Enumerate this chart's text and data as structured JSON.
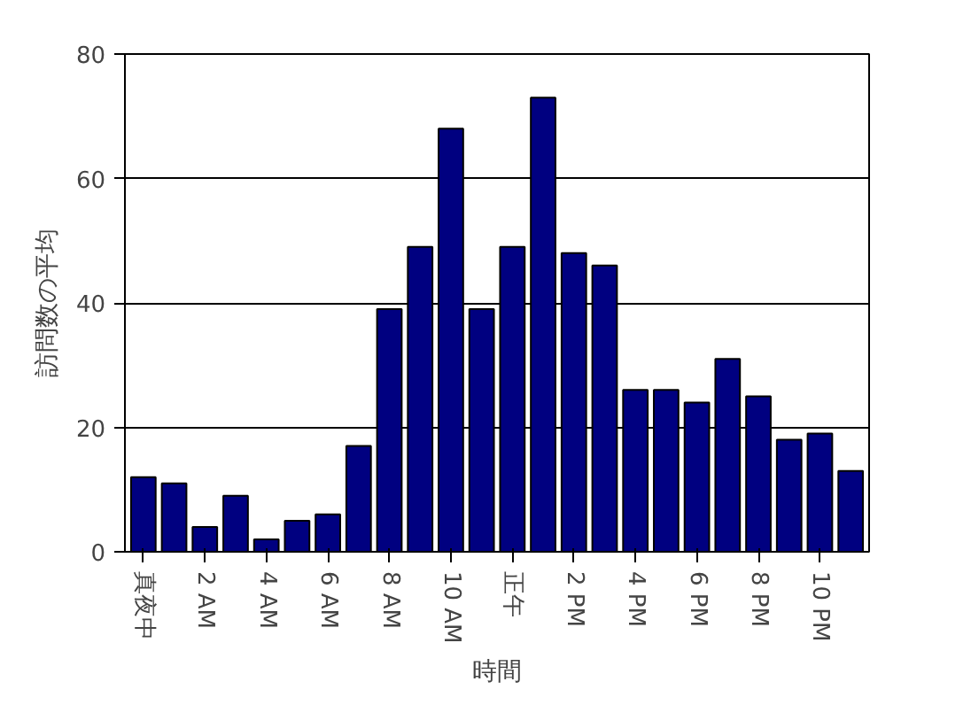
{
  "chart_data": {
    "type": "bar",
    "xlabel": "時間",
    "ylabel": "訪問数の平均",
    "categories": [
      "真夜中",
      null,
      "2 AM",
      null,
      "4 AM",
      null,
      "6 AM",
      null,
      "8 AM",
      null,
      "10 AM",
      null,
      "正午",
      null,
      "2 PM",
      null,
      "4 PM",
      null,
      "6 PM",
      null,
      "8 PM",
      null,
      "10 PM",
      null
    ],
    "values": [
      12,
      11,
      4,
      9,
      2,
      5,
      6,
      17,
      39,
      49,
      68,
      39,
      49,
      73,
      48,
      46,
      26,
      26,
      24,
      31,
      25,
      18,
      19,
      13
    ],
    "color": "#000080",
    "ylim": [
      0,
      80
    ],
    "yticks": [
      0,
      20,
      40,
      60,
      80
    ],
    "grid": "y"
  }
}
